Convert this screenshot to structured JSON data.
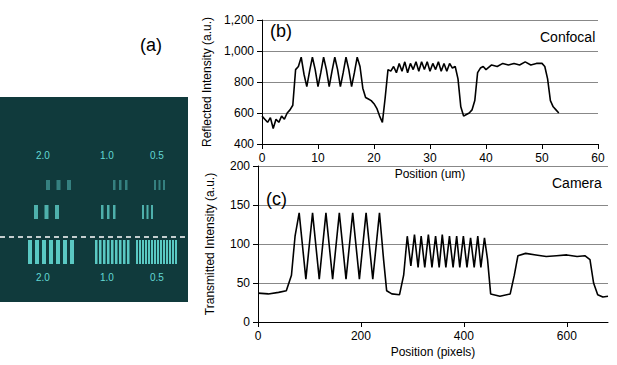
{
  "image_panel": {
    "label": "(a)",
    "labels_top": [
      "2.0",
      "1.0",
      "0.5"
    ],
    "labels_bottom": [
      "2.0",
      "1.0",
      "0.5"
    ]
  },
  "chart_data": [
    {
      "type": "line",
      "panel_label": "(b)",
      "annotation": "Confocal",
      "x_label": "Position (um)",
      "y_label": "Reflected Intensity (a.u.)",
      "xlim": [
        0,
        60
      ],
      "xticks": [
        0,
        10,
        20,
        30,
        40,
        50,
        60
      ],
      "ylim": [
        400,
        1200
      ],
      "yticks": [
        400,
        600,
        800,
        1000,
        1200
      ],
      "grid": true,
      "color": "#000000",
      "x": [
        0,
        0.5,
        1,
        1.5,
        2,
        2.5,
        3,
        3.5,
        4,
        4.5,
        5,
        5.5,
        6,
        6.5,
        7,
        7.5,
        8,
        8.5,
        9,
        9.5,
        10,
        10.5,
        11,
        11.5,
        12,
        12.5,
        13,
        13.5,
        14,
        14.5,
        15,
        15.5,
        16,
        16.5,
        17,
        17.5,
        18,
        18.5,
        19,
        19.5,
        20,
        20.5,
        21,
        21.5,
        22,
        22.5,
        23,
        23.5,
        24,
        24.5,
        25,
        25.5,
        26,
        26.5,
        27,
        27.5,
        28,
        28.5,
        29,
        29.5,
        30,
        30.5,
        31,
        31.5,
        32,
        32.5,
        33,
        33.5,
        34,
        34.5,
        35,
        35.5,
        36,
        36.5,
        37,
        37.5,
        38,
        38.5,
        39,
        39.5,
        40,
        41,
        42,
        43,
        44,
        45,
        46,
        47,
        48,
        49,
        50,
        50.5,
        51,
        51.5,
        52,
        52.5,
        53
      ],
      "values": [
        580,
        560,
        540,
        570,
        500,
        560,
        540,
        580,
        560,
        600,
        620,
        650,
        880,
        900,
        960,
        850,
        770,
        870,
        960,
        880,
        770,
        860,
        960,
        880,
        770,
        870,
        960,
        880,
        770,
        860,
        960,
        880,
        770,
        860,
        960,
        900,
        760,
        700,
        690,
        680,
        660,
        630,
        580,
        540,
        700,
        880,
        870,
        900,
        860,
        920,
        870,
        930,
        860,
        920,
        880,
        930,
        870,
        930,
        880,
        930,
        870,
        920,
        880,
        930,
        870,
        920,
        870,
        920,
        890,
        900,
        820,
        640,
        580,
        590,
        600,
        620,
        680,
        860,
        890,
        900,
        880,
        910,
        900,
        920,
        910,
        920,
        910,
        930,
        910,
        920,
        920,
        900,
        820,
        680,
        640,
        620,
        600
      ]
    },
    {
      "type": "line",
      "panel_label": "(c)",
      "annotation": "Camera",
      "x_label": "Position (pixels)",
      "y_label": "Transmitted Intensity (a.u.)",
      "xlim": [
        0,
        680
      ],
      "xticks": [
        0,
        200,
        400,
        600
      ],
      "ylim": [
        0,
        200
      ],
      "yticks": [
        0,
        50,
        100,
        150,
        200
      ],
      "grid": true,
      "color": "#000000",
      "x": [
        0,
        20,
        40,
        55,
        65,
        72,
        80,
        93,
        106,
        119,
        132,
        145,
        158,
        171,
        184,
        197,
        210,
        223,
        236,
        244,
        250,
        260,
        275,
        283,
        290,
        297,
        304,
        311,
        317,
        324,
        331,
        338,
        345,
        352,
        358,
        365,
        372,
        379,
        386,
        392,
        399,
        406,
        413,
        420,
        427,
        433,
        440,
        446,
        452,
        470,
        490,
        498,
        505,
        520,
        540,
        560,
        580,
        600,
        620,
        635,
        645,
        652,
        660,
        670,
        680
      ],
      "values": [
        37,
        36,
        38,
        40,
        60,
        110,
        140,
        55,
        140,
        55,
        140,
        55,
        140,
        55,
        140,
        55,
        140,
        55,
        140,
        80,
        40,
        36,
        35,
        60,
        110,
        72,
        112,
        70,
        110,
        70,
        112,
        70,
        110,
        70,
        112,
        70,
        110,
        70,
        110,
        70,
        110,
        70,
        108,
        70,
        110,
        70,
        108,
        80,
        36,
        33,
        36,
        60,
        85,
        88,
        86,
        84,
        85,
        86,
        84,
        85,
        80,
        50,
        35,
        32,
        33
      ]
    }
  ]
}
